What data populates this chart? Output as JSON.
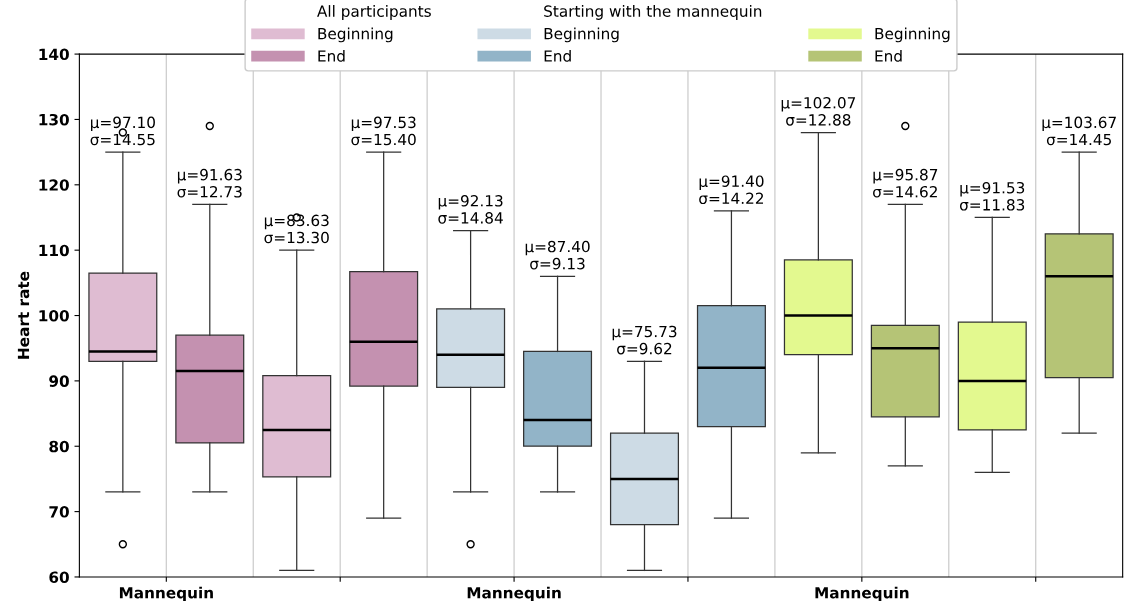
{
  "chart_data": {
    "type": "box",
    "categories": [
      "Mannequin",
      null,
      "Mannequin",
      null,
      "Mannequin",
      null
    ],
    "ylabel": "Heart rate",
    "ylim": [
      60,
      140
    ],
    "yticks": [
      60,
      70,
      80,
      90,
      100,
      110,
      120,
      130,
      140
    ],
    "grid": "x",
    "legend": "top",
    "series": [
      {
        "name": "Beginning",
        "color": "#dfbcd2",
        "boxes": [
          {
            "low": 73,
            "q1": 93,
            "median": 94.5,
            "q3": 106.5,
            "high": 125,
            "outliers": [
              65,
              128
            ]
          },
          {
            "low": 61,
            "q1": 75.3,
            "median": 82.5,
            "q3": 90.8,
            "high": 110,
            "outliers": [
              115
            ]
          },
          null,
          null,
          null,
          null
        ]
      },
      {
        "name": "End",
        "color": "#c491b0",
        "boxes": [
          {
            "low": 73,
            "q1": 80.5,
            "median": 91.5,
            "q3": 97,
            "high": 117,
            "outliers": [
              129
            ]
          },
          {
            "low": 69,
            "q1": 89.2,
            "median": 96,
            "q3": 106.7,
            "high": 125
          },
          null,
          null,
          null,
          null
        ]
      },
      {
        "name": "Beginning",
        "color": "#cddbe5",
        "boxes": [
          null,
          null,
          {
            "low": 73,
            "q1": 89,
            "median": 94,
            "q3": 101,
            "high": 113,
            "outliers": [
              65
            ]
          },
          {
            "low": 61,
            "q1": 68,
            "median": 75,
            "q3": 82,
            "high": 93
          },
          null,
          null
        ]
      },
      {
        "name": "End",
        "color": "#92b4c8",
        "boxes": [
          null,
          null,
          {
            "low": 73,
            "q1": 80,
            "median": 84,
            "q3": 94.5,
            "high": 106
          },
          {
            "low": 69,
            "q1": 83,
            "median": 92,
            "q3": 101.5,
            "high": 116
          },
          null,
          null
        ]
      },
      {
        "name": "Beginning",
        "color": "#e3f98f",
        "boxes": [
          null,
          null,
          null,
          null,
          {
            "low": 79,
            "q1": 94,
            "median": 100,
            "q3": 108.5,
            "high": 128
          },
          {
            "low": 76,
            "q1": 82.5,
            "median": 90,
            "q3": 99,
            "high": 115
          }
        ]
      },
      {
        "name": "End",
        "color": "#b5c476",
        "boxes": [
          null,
          null,
          null,
          null,
          {
            "low": 77,
            "q1": 84.5,
            "median": 95,
            "q3": 98.5,
            "high": 117,
            "outliers": [
              129
            ]
          },
          {
            "low": 82,
            "q1": 90.5,
            "median": 106,
            "q3": 112.5,
            "high": 125
          }
        ]
      }
    ],
    "annotations": [
      "All participants",
      "Starting with the mannequin",
      "μ=97.10\nσ=14.55",
      "μ=91.63\nσ=12.73",
      "μ=83.63\nσ=13.30",
      "μ=97.53\nσ=15.40",
      "μ=92.13\nσ=14.84",
      "μ=87.40\nσ=9.13",
      "μ=75.73\nσ=9.62",
      "μ=91.40\nσ=14.22",
      "μ=102.07\nσ=12.88",
      "μ=95.87\nσ=14.62",
      "μ=91.53\nσ=11.83",
      "μ=103.67\nσ=14.45"
    ]
  }
}
